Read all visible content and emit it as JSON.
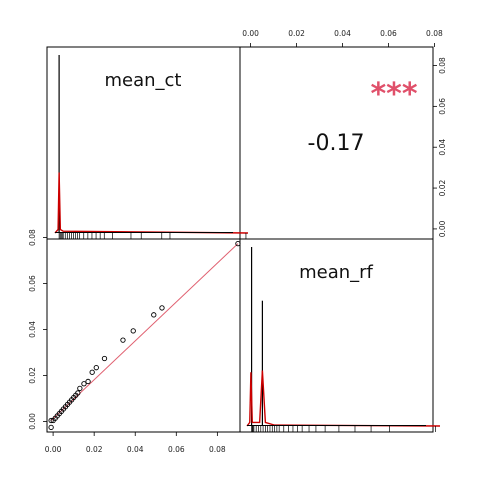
{
  "colors": {
    "frame": "#000000",
    "density": "#cc0000",
    "fit_line": "#e06070",
    "stars": "#e0506a",
    "points": "#000000"
  },
  "chart_data": {
    "type": "scatter",
    "variables": [
      "mean_ct",
      "mean_rf"
    ],
    "diagonal_labels": {
      "mean_ct": "mean_ct",
      "mean_rf": "mean_rf"
    },
    "correlation": {
      "value_label": "-0.17",
      "stars": "***"
    },
    "axis_ranges": {
      "mean_ct": [
        -0.002,
        0.092
      ],
      "mean_rf": [
        -0.002,
        0.082
      ]
    },
    "tick_labels": {
      "top_x": [
        "0.00",
        "0.02",
        "0.04",
        "0.06",
        "0.08"
      ],
      "right_y": [
        "0.00",
        "0.02",
        "0.04",
        "0.06",
        "0.08"
      ],
      "left_y": [
        "0.00",
        "0.02",
        "0.04",
        "0.06",
        "0.08"
      ],
      "bottom_x": [
        "0.00",
        "0.02",
        "0.04",
        "0.06",
        "0.08"
      ]
    },
    "tick_values": {
      "top_x": [
        0,
        0.02,
        0.04,
        0.06,
        0.08
      ],
      "right_y": [
        0,
        0.02,
        0.04,
        0.06,
        0.08
      ],
      "left_y": [
        0,
        0.02,
        0.04,
        0.06,
        0.08
      ],
      "bottom_x": [
        0,
        0.02,
        0.04,
        0.06,
        0.08
      ]
    },
    "scatter_points": [
      {
        "x": 0.0,
        "y": 0.0
      },
      {
        "x": 0.0,
        "y": 0.003
      },
      {
        "x": 0.001,
        "y": 0.003
      },
      {
        "x": 0.002,
        "y": 0.004
      },
      {
        "x": 0.003,
        "y": 0.005
      },
      {
        "x": 0.004,
        "y": 0.006
      },
      {
        "x": 0.005,
        "y": 0.007
      },
      {
        "x": 0.006,
        "y": 0.008
      },
      {
        "x": 0.007,
        "y": 0.009
      },
      {
        "x": 0.008,
        "y": 0.01
      },
      {
        "x": 0.009,
        "y": 0.011
      },
      {
        "x": 0.01,
        "y": 0.012
      },
      {
        "x": 0.011,
        "y": 0.013
      },
      {
        "x": 0.012,
        "y": 0.014
      },
      {
        "x": 0.013,
        "y": 0.015
      },
      {
        "x": 0.014,
        "y": 0.017
      },
      {
        "x": 0.016,
        "y": 0.019
      },
      {
        "x": 0.018,
        "y": 0.02
      },
      {
        "x": 0.02,
        "y": 0.024
      },
      {
        "x": 0.022,
        "y": 0.026
      },
      {
        "x": 0.026,
        "y": 0.03
      },
      {
        "x": 0.035,
        "y": 0.038
      },
      {
        "x": 0.04,
        "y": 0.042
      },
      {
        "x": 0.05,
        "y": 0.049
      },
      {
        "x": 0.054,
        "y": 0.052
      },
      {
        "x": 0.091,
        "y": 0.08
      }
    ],
    "fit_line": [
      {
        "x": 0.0,
        "y": 0.003
      },
      {
        "x": 0.091,
        "y": 0.08
      }
    ],
    "rug_mean_ct": [
      0.0,
      0.0005,
      0.001,
      0.0015,
      0.002,
      0.003,
      0.004,
      0.005,
      0.006,
      0.007,
      0.008,
      0.009,
      0.01,
      0.012,
      0.014,
      0.016,
      0.018,
      0.02,
      0.022,
      0.026,
      0.035,
      0.04,
      0.05,
      0.054,
      0.091
    ],
    "rug_mean_rf": [
      0.0,
      0.0003,
      0.0006,
      0.001,
      0.002,
      0.003,
      0.004,
      0.005,
      0.006,
      0.007,
      0.008,
      0.009,
      0.01,
      0.011,
      0.012,
      0.014,
      0.016,
      0.018,
      0.02,
      0.022,
      0.025,
      0.028,
      0.032,
      0.038,
      0.045,
      0.052,
      0.06,
      0.08
    ],
    "hist_mean_ct": [
      {
        "x": 0.0,
        "density": 1.0
      }
    ],
    "hist_mean_rf": [
      {
        "x": 0.0,
        "density": 1.0
      },
      {
        "x": 0.0047,
        "density": 0.7
      }
    ],
    "density_curve_mean_ct": [
      {
        "x": -0.002,
        "d": 0.0
      },
      {
        "x": -0.0005,
        "d": 0.02
      },
      {
        "x": 0.0,
        "d": 0.34
      },
      {
        "x": 0.0006,
        "d": 0.02
      },
      {
        "x": 0.002,
        "d": 0.01
      },
      {
        "x": 0.092,
        "d": 0.0
      }
    ],
    "density_curve_mean_rf": [
      {
        "x": -0.002,
        "d": 0.0
      },
      {
        "x": -0.0008,
        "d": 0.02
      },
      {
        "x": -0.0003,
        "d": 0.3
      },
      {
        "x": 0.0003,
        "d": 0.02
      },
      {
        "x": 0.0035,
        "d": 0.02
      },
      {
        "x": 0.0047,
        "d": 0.31
      },
      {
        "x": 0.006,
        "d": 0.02
      },
      {
        "x": 0.01,
        "d": 0.005
      },
      {
        "x": 0.082,
        "d": 0.0
      }
    ]
  }
}
